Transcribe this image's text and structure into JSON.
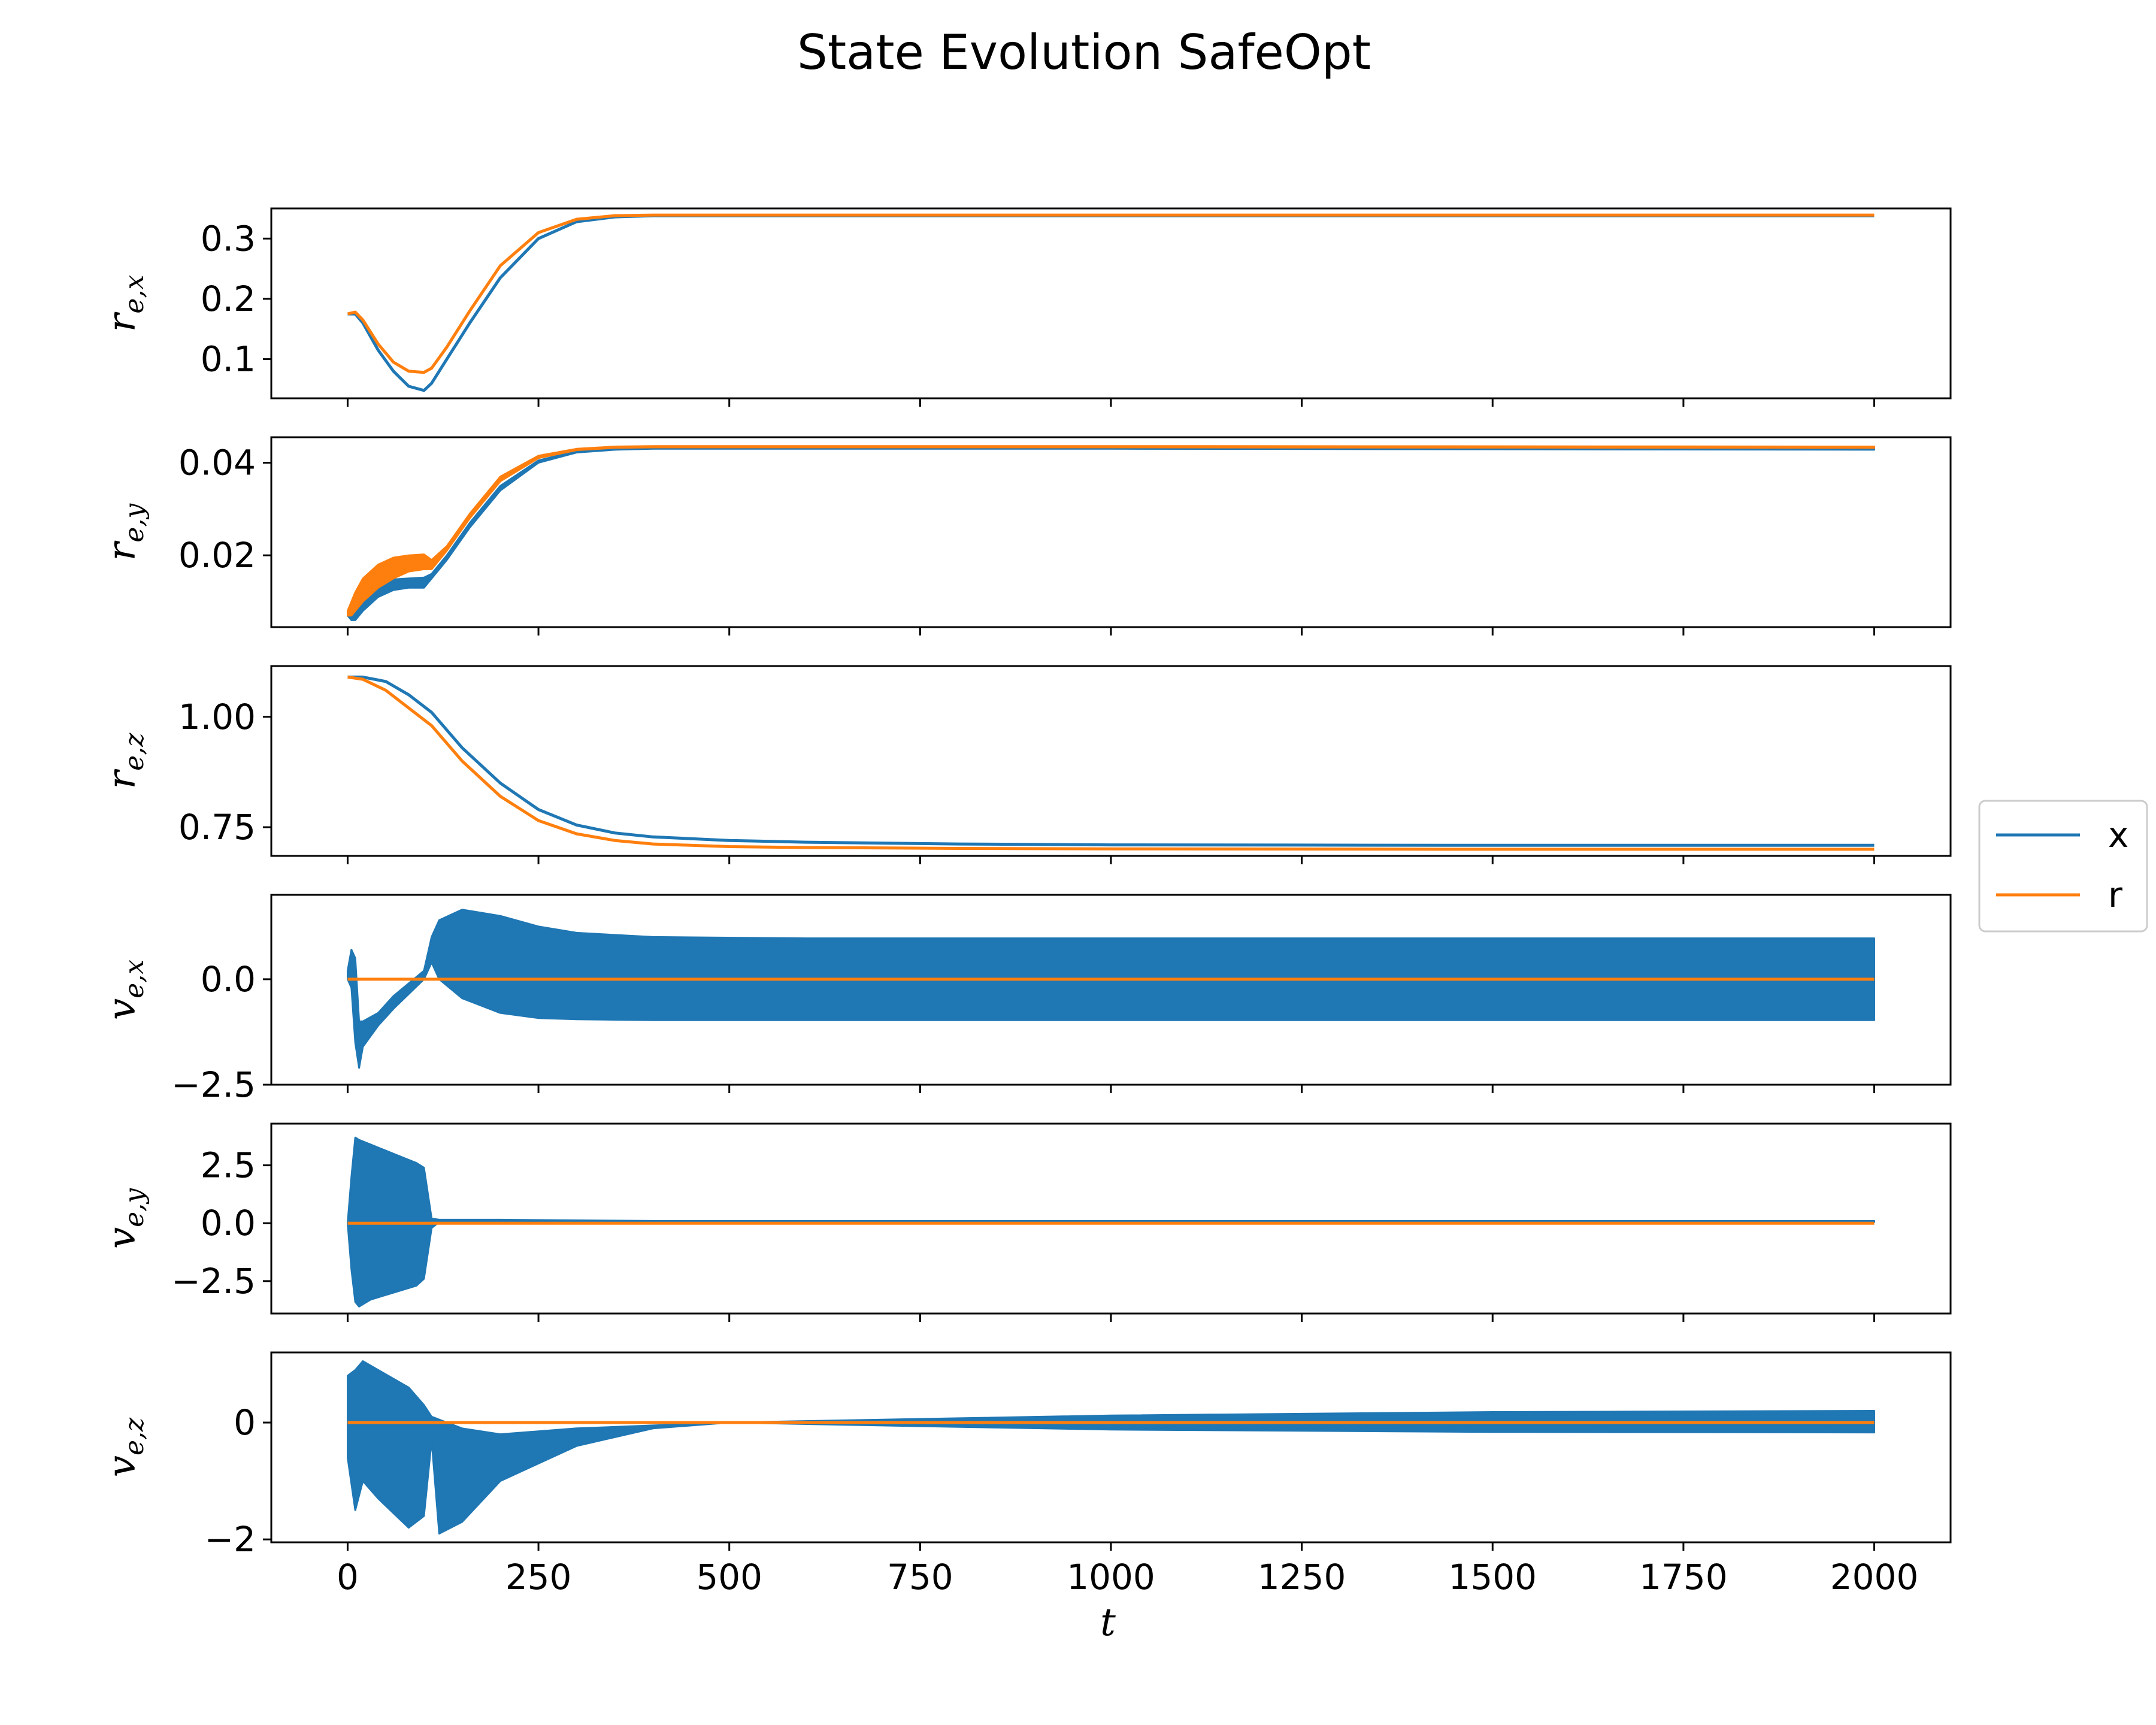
{
  "chart_data": {
    "type": "line",
    "title": "State Evolution SafeOpt",
    "xlabel": "t",
    "xlim": [
      -100,
      2100
    ],
    "xticks": [
      0,
      250,
      500,
      750,
      1000,
      1250,
      1500,
      1750,
      2000
    ],
    "xtick_labels": [
      "0",
      "250",
      "500",
      "750",
      "1000",
      "1250",
      "1500",
      "1750",
      "2000"
    ],
    "legend": {
      "placement": "right",
      "entries": [
        {
          "label": "x",
          "color": "#1f77b4"
        },
        {
          "label": "r",
          "color": "#ff7f0e"
        }
      ]
    },
    "colors": {
      "x": "#1f77b4",
      "r": "#ff7f0e"
    },
    "panels": [
      {
        "ylabel_base": "r",
        "ylabel_sub": "e,x",
        "ylim": [
          0.035,
          0.35
        ],
        "yticks": [
          0.1,
          0.2,
          0.3
        ],
        "ytick_labels": [
          "0.1",
          "0.2",
          "0.3"
        ],
        "series": [
          {
            "name": "x",
            "mode": "line",
            "x": [
              0,
              10,
              20,
              40,
              60,
              80,
              100,
              110,
              130,
              160,
              200,
              250,
              300,
              350,
              400,
              500,
              1000,
              2000
            ],
            "y": [
              0.175,
              0.175,
              0.16,
              0.115,
              0.08,
              0.055,
              0.048,
              0.06,
              0.1,
              0.16,
              0.235,
              0.3,
              0.328,
              0.336,
              0.338,
              0.338,
              0.338,
              0.338
            ]
          },
          {
            "name": "r",
            "mode": "line",
            "x": [
              0,
              10,
              20,
              40,
              60,
              80,
              100,
              110,
              130,
              160,
              200,
              250,
              300,
              350,
              400,
              500,
              1000,
              2000
            ],
            "y": [
              0.175,
              0.178,
              0.165,
              0.125,
              0.095,
              0.08,
              0.078,
              0.085,
              0.12,
              0.18,
              0.255,
              0.31,
              0.332,
              0.338,
              0.339,
              0.339,
              0.339,
              0.339
            ]
          }
        ]
      },
      {
        "ylabel_base": "r",
        "ylabel_sub": "e,y",
        "ylim": [
          0.0045,
          0.0455
        ],
        "yticks": [
          0.02,
          0.04
        ],
        "ytick_labels": [
          "0.02",
          "0.04"
        ],
        "series": [
          {
            "name": "x",
            "mode": "band",
            "x": [
              0,
              5,
              10,
              20,
              40,
              60,
              80,
              100,
              110,
              130,
              160,
              200,
              250,
              300,
              350,
              400,
              500,
              1000,
              2000
            ],
            "lo": [
              0.007,
              0.006,
              0.006,
              0.008,
              0.011,
              0.0125,
              0.013,
              0.013,
              0.015,
              0.019,
              0.026,
              0.034,
              0.04,
              0.0422,
              0.0428,
              0.043,
              0.043,
              0.043,
              0.0428
            ],
            "hi": [
              0.008,
              0.009,
              0.01,
              0.013,
              0.0145,
              0.0148,
              0.015,
              0.0152,
              0.016,
              0.02,
              0.027,
              0.035,
              0.0405,
              0.0425,
              0.043,
              0.0432,
              0.0432,
              0.0432,
              0.043
            ]
          },
          {
            "name": "r",
            "mode": "band",
            "x": [
              0,
              5,
              10,
              20,
              40,
              60,
              80,
              100,
              110,
              130,
              160,
              200,
              250,
              300,
              350,
              400,
              500,
              1000,
              2000
            ],
            "lo": [
              0.007,
              0.007,
              0.008,
              0.01,
              0.013,
              0.015,
              0.0165,
              0.017,
              0.017,
              0.021,
              0.028,
              0.036,
              0.041,
              0.0427,
              0.0432,
              0.0433,
              0.0433,
              0.0433,
              0.0432
            ],
            "hi": [
              0.008,
              0.01,
              0.012,
              0.015,
              0.018,
              0.0195,
              0.02,
              0.0202,
              0.019,
              0.022,
              0.029,
              0.037,
              0.0415,
              0.043,
              0.0435,
              0.0436,
              0.0436,
              0.0436,
              0.0435
            ]
          }
        ]
      },
      {
        "ylabel_base": "r",
        "ylabel_sub": "e,z",
        "ylim": [
          0.685,
          1.115
        ],
        "yticks": [
          0.75,
          1.0
        ],
        "ytick_labels": [
          "0.75",
          "1.00"
        ],
        "series": [
          {
            "name": "x",
            "mode": "line",
            "x": [
              0,
              20,
              50,
              80,
              110,
              150,
              200,
              250,
              300,
              350,
              400,
              500,
              600,
              800,
              1000,
              1500,
              2000
            ],
            "y": [
              1.09,
              1.09,
              1.08,
              1.05,
              1.01,
              0.93,
              0.85,
              0.79,
              0.755,
              0.737,
              0.728,
              0.72,
              0.716,
              0.712,
              0.71,
              0.709,
              0.709
            ]
          },
          {
            "name": "r",
            "mode": "line",
            "x": [
              0,
              20,
              50,
              80,
              110,
              150,
              200,
              250,
              300,
              350,
              400,
              500,
              600,
              800,
              1000,
              1500,
              2000
            ],
            "y": [
              1.09,
              1.085,
              1.06,
              1.02,
              0.98,
              0.9,
              0.82,
              0.765,
              0.735,
              0.72,
              0.712,
              0.706,
              0.704,
              0.702,
              0.701,
              0.7,
              0.7
            ]
          }
        ]
      },
      {
        "ylabel_base": "v",
        "ylabel_sub": "e,x",
        "ylim": [
          -2.5,
          2.0
        ],
        "yticks": [
          -2.5,
          0.0
        ],
        "ytick_labels": [
          "−2.5",
          "0.0"
        ],
        "series": [
          {
            "name": "x",
            "mode": "band",
            "x": [
              0,
              5,
              10,
              15,
              20,
              40,
              60,
              80,
              100,
              110,
              120,
              150,
              200,
              250,
              300,
              400,
              600,
              1000,
              2000
            ],
            "lo": [
              0.0,
              -0.2,
              -1.5,
              -2.1,
              -1.6,
              -1.1,
              -0.7,
              -0.35,
              0.0,
              0.4,
              0.0,
              -0.45,
              -0.8,
              -0.92,
              -0.95,
              -0.97,
              -0.97,
              -0.97,
              -0.97
            ],
            "hi": [
              0.2,
              0.7,
              0.5,
              -1.0,
              -1.0,
              -0.8,
              -0.4,
              -0.1,
              0.2,
              1.0,
              1.4,
              1.65,
              1.5,
              1.25,
              1.1,
              1.0,
              0.97,
              0.97,
              0.97
            ]
          },
          {
            "name": "r",
            "mode": "line",
            "x": [
              0,
              2000
            ],
            "y": [
              0.0,
              0.0
            ]
          }
        ]
      },
      {
        "ylabel_base": "v",
        "ylabel_sub": "e,y",
        "ylim": [
          -3.9,
          4.3
        ],
        "yticks": [
          -2.5,
          0.0,
          2.5
        ],
        "ytick_labels": [
          "−2.5",
          "0.0",
          "2.5"
        ],
        "series": [
          {
            "name": "x",
            "mode": "band",
            "x": [
              0,
              5,
              10,
              15,
              30,
              60,
              90,
              100,
              110,
              120,
              200,
              400,
              2000
            ],
            "lo": [
              0.0,
              -2.0,
              -3.4,
              -3.6,
              -3.3,
              -3.0,
              -2.7,
              -2.4,
              -0.2,
              0.05,
              0.05,
              0.05,
              0.05
            ],
            "hi": [
              0.0,
              2.0,
              3.7,
              3.6,
              3.4,
              3.0,
              2.6,
              2.4,
              0.2,
              0.15,
              0.15,
              0.1,
              0.1
            ]
          },
          {
            "name": "r",
            "mode": "line",
            "x": [
              0,
              2000
            ],
            "y": [
              0.0,
              0.0
            ]
          }
        ]
      },
      {
        "ylabel_base": "v",
        "ylabel_sub": "e,z",
        "ylim": [
          -2.05,
          1.2
        ],
        "yticks": [
          -2,
          0
        ],
        "ytick_labels": [
          "−2",
          "0"
        ],
        "series": [
          {
            "name": "x",
            "mode": "band",
            "x": [
              0,
              10,
              20,
              40,
              80,
              100,
              110,
              120,
              150,
              200,
              300,
              400,
              500,
              700,
              1000,
              1500,
              2000
            ],
            "lo": [
              -0.6,
              -1.5,
              -1.0,
              -1.3,
              -1.8,
              -1.6,
              -0.3,
              -1.9,
              -1.7,
              -1.0,
              -0.4,
              -0.1,
              0.0,
              -0.05,
              -0.12,
              -0.16,
              -0.17
            ],
            "hi": [
              0.8,
              0.9,
              1.05,
              0.9,
              0.6,
              0.3,
              0.1,
              0.05,
              -0.1,
              -0.2,
              -0.1,
              -0.05,
              0.0,
              0.05,
              0.12,
              0.18,
              0.2
            ]
          },
          {
            "name": "r",
            "mode": "line",
            "x": [
              0,
              2000
            ],
            "y": [
              0.0,
              0.0
            ]
          }
        ]
      }
    ]
  }
}
